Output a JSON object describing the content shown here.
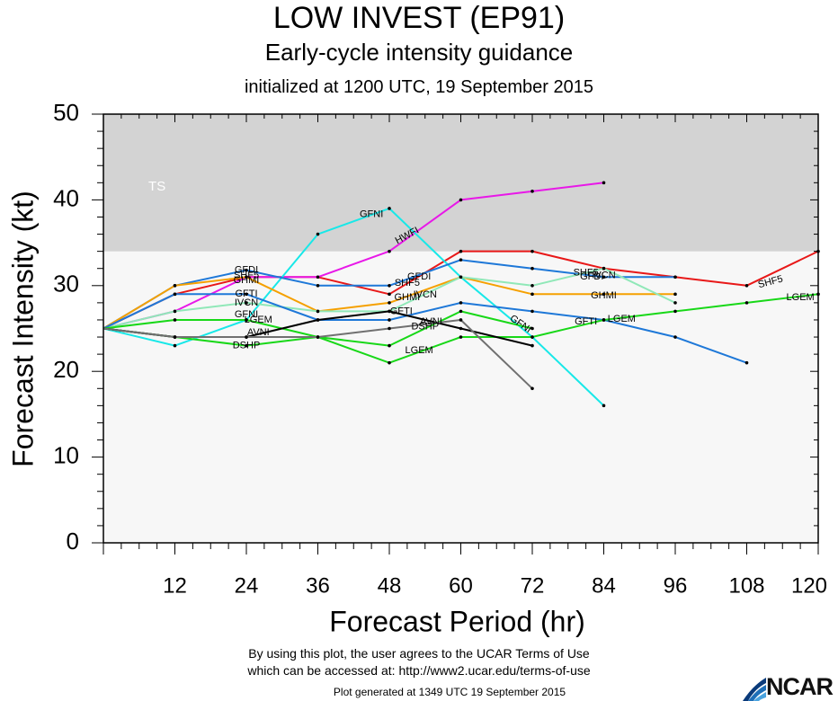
{
  "header": {
    "title": "LOW INVEST (EP91)",
    "subtitle": "Early-cycle intensity guidance",
    "init": "initialized at 1200 UTC, 19 September 2015"
  },
  "footer": {
    "terms_line1": "By using this plot, the user agrees to the UCAR Terms of Use",
    "terms_line2": "which can be accessed at: http://www2.ucar.edu/terms-of-use",
    "generated": "Plot generated at 1349 UTC   19 September 2015",
    "logo_text": "NCAR"
  },
  "chart_data": {
    "type": "line",
    "title": "LOW INVEST (EP91)",
    "xlabel": "Forecast Period (hr)",
    "ylabel": "Forecast Intensity (kt)",
    "xlim": [
      0,
      120
    ],
    "ylim": [
      0,
      50
    ],
    "xticks": [
      12,
      24,
      36,
      48,
      60,
      72,
      84,
      96,
      108,
      120
    ],
    "yticks": [
      0,
      10,
      20,
      30,
      40,
      50
    ],
    "ts_band": {
      "label": "TS",
      "from": 34,
      "to": 50,
      "color": "#d3d3d3"
    },
    "plot_bg": "#f7f7f7",
    "series": [
      {
        "name": "SHF5",
        "color": "#e81818",
        "x": [
          0,
          12,
          24,
          36,
          48,
          60,
          72,
          84,
          96,
          108,
          120
        ],
        "y": [
          25,
          29,
          31,
          31,
          29,
          34,
          34,
          32,
          31,
          30,
          34
        ]
      },
      {
        "name": "HWFI",
        "color": "#e818e8",
        "x": [
          0,
          12,
          24,
          36,
          48,
          60,
          72,
          84
        ],
        "y": [
          25,
          27,
          31,
          31,
          34,
          40,
          41,
          42
        ]
      },
      {
        "name": "GFNI",
        "color": "#18e8e8",
        "x": [
          0,
          12,
          24,
          36,
          48,
          60,
          72,
          84
        ],
        "y": [
          25,
          23,
          26,
          36,
          39,
          31,
          24,
          16
        ]
      },
      {
        "name": "GFDI",
        "color": "#1e78d8",
        "x": [
          0,
          12,
          24,
          36,
          48,
          60,
          72,
          84,
          96
        ],
        "y": [
          25,
          30,
          31.8,
          30,
          30,
          33,
          32,
          31,
          31
        ]
      },
      {
        "name": "GHMI",
        "color": "#f5a000",
        "x": [
          0,
          12,
          24,
          36,
          48,
          60,
          72,
          84,
          96
        ],
        "y": [
          25,
          30,
          31,
          27,
          28,
          31,
          29,
          29,
          29
        ]
      },
      {
        "name": "IVCN",
        "color": "#90e8b8",
        "x": [
          0,
          12,
          24,
          36,
          48,
          60,
          72,
          84,
          96
        ],
        "y": [
          25,
          27,
          28,
          27,
          27,
          31,
          30,
          32,
          28
        ]
      },
      {
        "name": "GFTI",
        "color": "#1e78d8",
        "x": [
          0,
          12,
          24,
          36,
          48,
          60,
          72,
          84,
          96,
          108
        ],
        "y": [
          25,
          29,
          29,
          26,
          26,
          28,
          27,
          26,
          24,
          21
        ]
      },
      {
        "name": "LGEM",
        "color": "#18d818",
        "x": [
          0,
          12,
          24,
          36,
          48,
          60,
          72,
          84,
          96,
          108,
          120
        ],
        "y": [
          25,
          24,
          23,
          24,
          21,
          24,
          24,
          26,
          27,
          28,
          29
        ]
      },
      {
        "name": "DSHP",
        "color": "#18d818",
        "x": [
          0,
          12,
          24,
          36,
          48,
          60,
          72
        ],
        "y": [
          25,
          26,
          26,
          24,
          23,
          27,
          25
        ]
      },
      {
        "name": "AVNI",
        "color": "#000000",
        "x": [
          0,
          12,
          24,
          36,
          48,
          60,
          72
        ],
        "y": [
          25,
          24,
          24,
          26,
          27,
          25,
          23
        ]
      },
      {
        "name": "DSHP",
        "color": "#707070",
        "x": [
          0,
          12,
          24,
          36,
          48,
          60,
          72
        ],
        "y": [
          25,
          24,
          24,
          24,
          25,
          26,
          18
        ]
      }
    ],
    "annotations": [
      {
        "text": "GFDI",
        "x": 24,
        "y": 31.8
      },
      {
        "text": "SHF5",
        "x": 24,
        "y": 31.2
      },
      {
        "text": "GHMI",
        "x": 24,
        "y": 30.6
      },
      {
        "text": "GFTI",
        "x": 24,
        "y": 29
      },
      {
        "text": "IVCN",
        "x": 24,
        "y": 28
      },
      {
        "text": "GFNI",
        "x": 24,
        "y": 26.6
      },
      {
        "text": "LGEM",
        "x": 26,
        "y": 26
      },
      {
        "text": "AVNI",
        "x": 26,
        "y": 24.5
      },
      {
        "text": "DSHP",
        "x": 24,
        "y": 23
      },
      {
        "text": "GFNI",
        "x": 45,
        "y": 38.3
      },
      {
        "text": "HWFI",
        "x": 51,
        "y": 35.8,
        "rotate": -28
      },
      {
        "text": "SHF5",
        "x": 51,
        "y": 30.3
      },
      {
        "text": "GFDI",
        "x": 53,
        "y": 31
      },
      {
        "text": "GHMI",
        "x": 51,
        "y": 28.6
      },
      {
        "text": "IVCN",
        "x": 54,
        "y": 28.9
      },
      {
        "text": "GFTI",
        "x": 50,
        "y": 27
      },
      {
        "text": "AVNI",
        "x": 55,
        "y": 25.8
      },
      {
        "text": "DSHP",
        "x": 54,
        "y": 25.2
      },
      {
        "text": "LGEM",
        "x": 53,
        "y": 22.4
      },
      {
        "text": "GFNI",
        "x": 70,
        "y": 25.5,
        "rotate": 35
      },
      {
        "text": "SHF5",
        "x": 81,
        "y": 31.5
      },
      {
        "text": "IVCN",
        "x": 84,
        "y": 31.2
      },
      {
        "text": "GFDI",
        "x": 82,
        "y": 31
      },
      {
        "text": "GHMI",
        "x": 84,
        "y": 28.8
      },
      {
        "text": "GFTI",
        "x": 81,
        "y": 25.8
      },
      {
        "text": "LGEM",
        "x": 87,
        "y": 26.1
      },
      {
        "text": "SHF5",
        "x": 112,
        "y": 30.4,
        "rotate": -15
      },
      {
        "text": "LGEM",
        "x": 117,
        "y": 28.6
      },
      {
        "text": "TS",
        "x": 9,
        "y": 41.5,
        "color": "#ffffff",
        "size": 15
      }
    ]
  }
}
